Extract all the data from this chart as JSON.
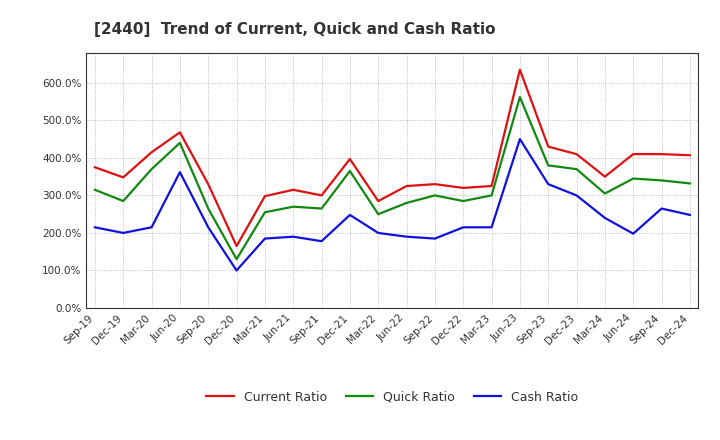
{
  "title": "[2440]  Trend of Current, Quick and Cash Ratio",
  "labels": [
    "Sep-19",
    "Dec-19",
    "Mar-20",
    "Jun-20",
    "Sep-20",
    "Dec-20",
    "Mar-21",
    "Jun-21",
    "Sep-21",
    "Dec-21",
    "Mar-22",
    "Jun-22",
    "Sep-22",
    "Dec-22",
    "Mar-23",
    "Jun-23",
    "Sep-23",
    "Dec-23",
    "Mar-24",
    "Jun-24",
    "Sep-24",
    "Dec-24"
  ],
  "current_ratio": [
    375,
    348,
    415,
    468,
    330,
    165,
    298,
    315,
    300,
    397,
    285,
    325,
    330,
    320,
    325,
    635,
    430,
    410,
    350,
    410,
    410,
    407
  ],
  "quick_ratio": [
    315,
    285,
    370,
    440,
    265,
    130,
    255,
    270,
    265,
    365,
    250,
    280,
    300,
    285,
    300,
    562,
    380,
    370,
    305,
    345,
    340,
    332
  ],
  "cash_ratio": [
    215,
    200,
    215,
    362,
    215,
    100,
    185,
    190,
    178,
    248,
    200,
    190,
    185,
    215,
    215,
    450,
    330,
    300,
    240,
    198,
    265,
    248
  ],
  "current_color": "#dd1111",
  "quick_color": "#118811",
  "cash_color": "#1111dd",
  "ylim": [
    0,
    680
  ],
  "yticks": [
    0,
    100,
    200,
    300,
    400,
    500,
    600
  ],
  "background_color": "#ffffff",
  "grid_color": "#999999",
  "legend_labels": [
    "Current Ratio",
    "Quick Ratio",
    "Cash Ratio"
  ]
}
